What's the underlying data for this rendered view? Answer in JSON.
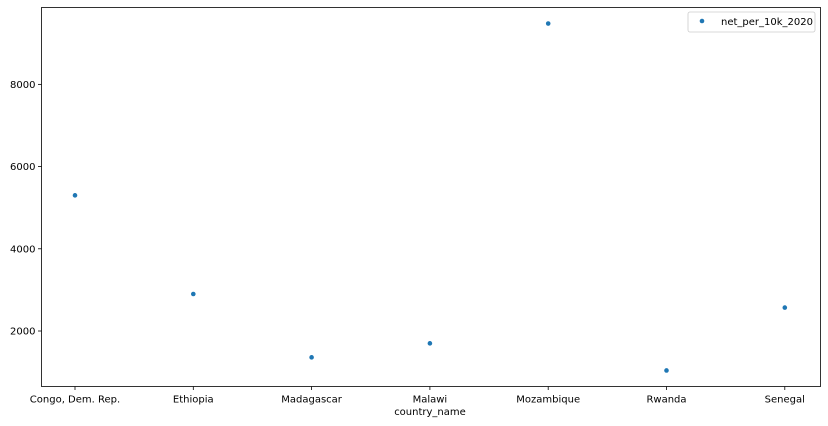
{
  "chart_data": {
    "type": "scatter",
    "xlabel": "country_name",
    "ylabel": "",
    "categories": [
      "Congo, Dem. Rep.",
      "Ethiopia",
      "Madagascar",
      "Malawi",
      "Mozambique",
      "Rwanda",
      "Senegal"
    ],
    "series": [
      {
        "name": "net_per_10k_2020",
        "values": [
          5300,
          2900,
          1360,
          1700,
          9480,
          1040,
          2570
        ],
        "color": "#1f77b4"
      }
    ],
    "ylim": [
      650,
      9870
    ],
    "yticks": [
      2000,
      4000,
      6000,
      8000
    ],
    "grid": false,
    "legend_position": "top-right"
  }
}
